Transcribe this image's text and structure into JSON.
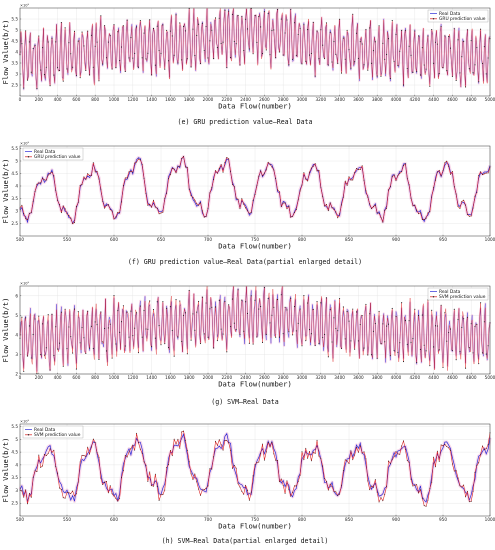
{
  "colors": {
    "real": "#2b2bd6",
    "pred": "#d81818",
    "marker": "#1a1a1a",
    "grid": "#e2e2e2",
    "glow": "#f4b8d8"
  },
  "chart_data": [
    {
      "type": "line",
      "caption": "(e) GRU prediction value—Real Data",
      "xlabel": "Data Flow(number)",
      "ylabel": "Flow Value(b/t)",
      "exponent": "×10⁵",
      "xlim": [
        0,
        5000
      ],
      "ylim": [
        2.0,
        6.0
      ],
      "xticks": [
        0,
        200,
        400,
        600,
        800,
        1000,
        1200,
        1400,
        1600,
        1800,
        2000,
        2200,
        2400,
        2600,
        2800,
        3000,
        3200,
        3400,
        3600,
        3800,
        4000,
        4200,
        4400,
        4600,
        4800,
        5000
      ],
      "yticks": [
        2.5,
        3.0,
        3.5,
        4.0,
        4.5,
        5.0,
        5.5
      ],
      "legend": {
        "position": "top-right"
      },
      "series": [
        {
          "name": "Real Data"
        },
        {
          "name": "GRU prediction value"
        }
      ],
      "x": [
        0,
        250,
        500,
        750,
        1000,
        1250,
        1500,
        1750,
        2000,
        2250,
        2500,
        2750,
        3000,
        3250,
        3500,
        3750,
        4000,
        4250,
        4500,
        4750,
        5000
      ],
      "center": [
        3.8,
        3.7,
        3.9,
        4.0,
        4.2,
        4.3,
        4.3,
        4.5,
        4.6,
        4.8,
        4.9,
        4.8,
        4.5,
        4.3,
        4.2,
        4.0,
        4.0,
        3.9,
        3.9,
        3.8,
        3.8
      ],
      "amplitude": [
        1.1,
        1.1,
        1.1,
        1.1,
        1.1,
        1.1,
        1.1,
        1.1,
        1.1,
        1.1,
        1.1,
        1.1,
        1.1,
        1.1,
        1.1,
        1.1,
        1.1,
        1.1,
        1.1,
        1.1,
        1.1
      ],
      "cycle": 47,
      "noise": 0.35,
      "pred_error": 0.12,
      "seed": 3
    },
    {
      "type": "line",
      "caption": "(f) GRU prediction value—Real Data(partial enlarged detail)",
      "xlabel": "Data Flow(number)",
      "ylabel": "Flow Value(b/t)",
      "exponent": "×10⁵",
      "xlim": [
        500,
        1000
      ],
      "ylim": [
        2.0,
        5.6
      ],
      "xticks": [
        500,
        550,
        600,
        650,
        700,
        750,
        800,
        850,
        900,
        950,
        1000
      ],
      "yticks": [
        2.5,
        3.0,
        3.5,
        4.0,
        4.5,
        5.0,
        5.5
      ],
      "legend": {
        "position": "top-left"
      },
      "series": [
        {
          "name": "Real Data"
        },
        {
          "name": "GRU prediction value"
        }
      ],
      "x": [
        500,
        550,
        600,
        650,
        700,
        750,
        800,
        850,
        900,
        950,
        1000
      ],
      "center": [
        3.7,
        3.6,
        3.8,
        4.0,
        4.0,
        3.9,
        3.8,
        3.8,
        3.7,
        3.8,
        3.9
      ],
      "amplitude": [
        0.9,
        0.9,
        1.0,
        1.0,
        1.0,
        1.0,
        0.9,
        0.9,
        1.0,
        1.0,
        1.0
      ],
      "cycle": 47,
      "noise": 0.18,
      "pred_error": 0.1,
      "seed": 7
    },
    {
      "type": "line",
      "caption": "(g) SVM—Real Data",
      "xlabel": "Data Flow(number)",
      "ylabel": "Flow Value(b/t)",
      "exponent": "×10⁵",
      "xlim": [
        0,
        5000
      ],
      "ylim": [
        2.0,
        6.5
      ],
      "xticks": [
        0,
        200,
        400,
        600,
        800,
        1000,
        1200,
        1400,
        1600,
        1800,
        2000,
        2200,
        2400,
        2600,
        2800,
        3000,
        3200,
        3400,
        3600,
        3800,
        4000,
        4200,
        4400,
        4600,
        4800,
        5000
      ],
      "yticks": [
        2,
        3,
        4,
        5,
        6
      ],
      "legend": {
        "position": "top-right"
      },
      "series": [
        {
          "name": "Real Data"
        },
        {
          "name": "SVM prediction value"
        }
      ],
      "x": [
        0,
        250,
        500,
        750,
        1000,
        1250,
        1500,
        1750,
        2000,
        2250,
        2500,
        2750,
        3000,
        3250,
        3500,
        3750,
        4000,
        4250,
        4500,
        4750,
        5000
      ],
      "center": [
        3.9,
        3.8,
        4.0,
        4.1,
        4.3,
        4.4,
        4.4,
        4.6,
        4.7,
        4.9,
        5.0,
        4.9,
        4.6,
        4.4,
        4.3,
        4.1,
        4.1,
        4.0,
        4.0,
        3.9,
        3.9
      ],
      "amplitude": [
        1.2,
        1.2,
        1.2,
        1.2,
        1.2,
        1.2,
        1.2,
        1.2,
        1.2,
        1.2,
        1.2,
        1.2,
        1.2,
        1.2,
        1.2,
        1.2,
        1.2,
        1.2,
        1.2,
        1.2,
        1.2
      ],
      "cycle": 47,
      "noise": 0.4,
      "pred_error": 0.3,
      "seed": 11
    },
    {
      "type": "line",
      "caption": "(h) SVM—Real Data(partial enlarged detail)",
      "xlabel": "Data Flow(number)",
      "ylabel": "Flow Value(b/t)",
      "exponent": "×10⁵",
      "xlim": [
        500,
        1000
      ],
      "ylim": [
        2.0,
        5.6
      ],
      "xticks": [
        500,
        550,
        600,
        650,
        700,
        750,
        800,
        850,
        900,
        950,
        1000
      ],
      "yticks": [
        2.5,
        3.0,
        3.5,
        4.0,
        4.5,
        5.0,
        5.5
      ],
      "legend": {
        "position": "top-left"
      },
      "series": [
        {
          "name": "Real Data"
        },
        {
          "name": "SVM prediction value"
        }
      ],
      "x": [
        500,
        550,
        600,
        650,
        700,
        750,
        800,
        850,
        900,
        950,
        1000
      ],
      "center": [
        3.7,
        3.6,
        3.8,
        4.0,
        4.0,
        3.9,
        3.8,
        3.8,
        3.7,
        3.8,
        3.9
      ],
      "amplitude": [
        0.9,
        0.9,
        1.0,
        1.0,
        1.0,
        1.0,
        0.9,
        0.9,
        1.0,
        1.0,
        1.0
      ],
      "cycle": 47,
      "noise": 0.18,
      "pred_error": 0.28,
      "seed": 13
    }
  ]
}
